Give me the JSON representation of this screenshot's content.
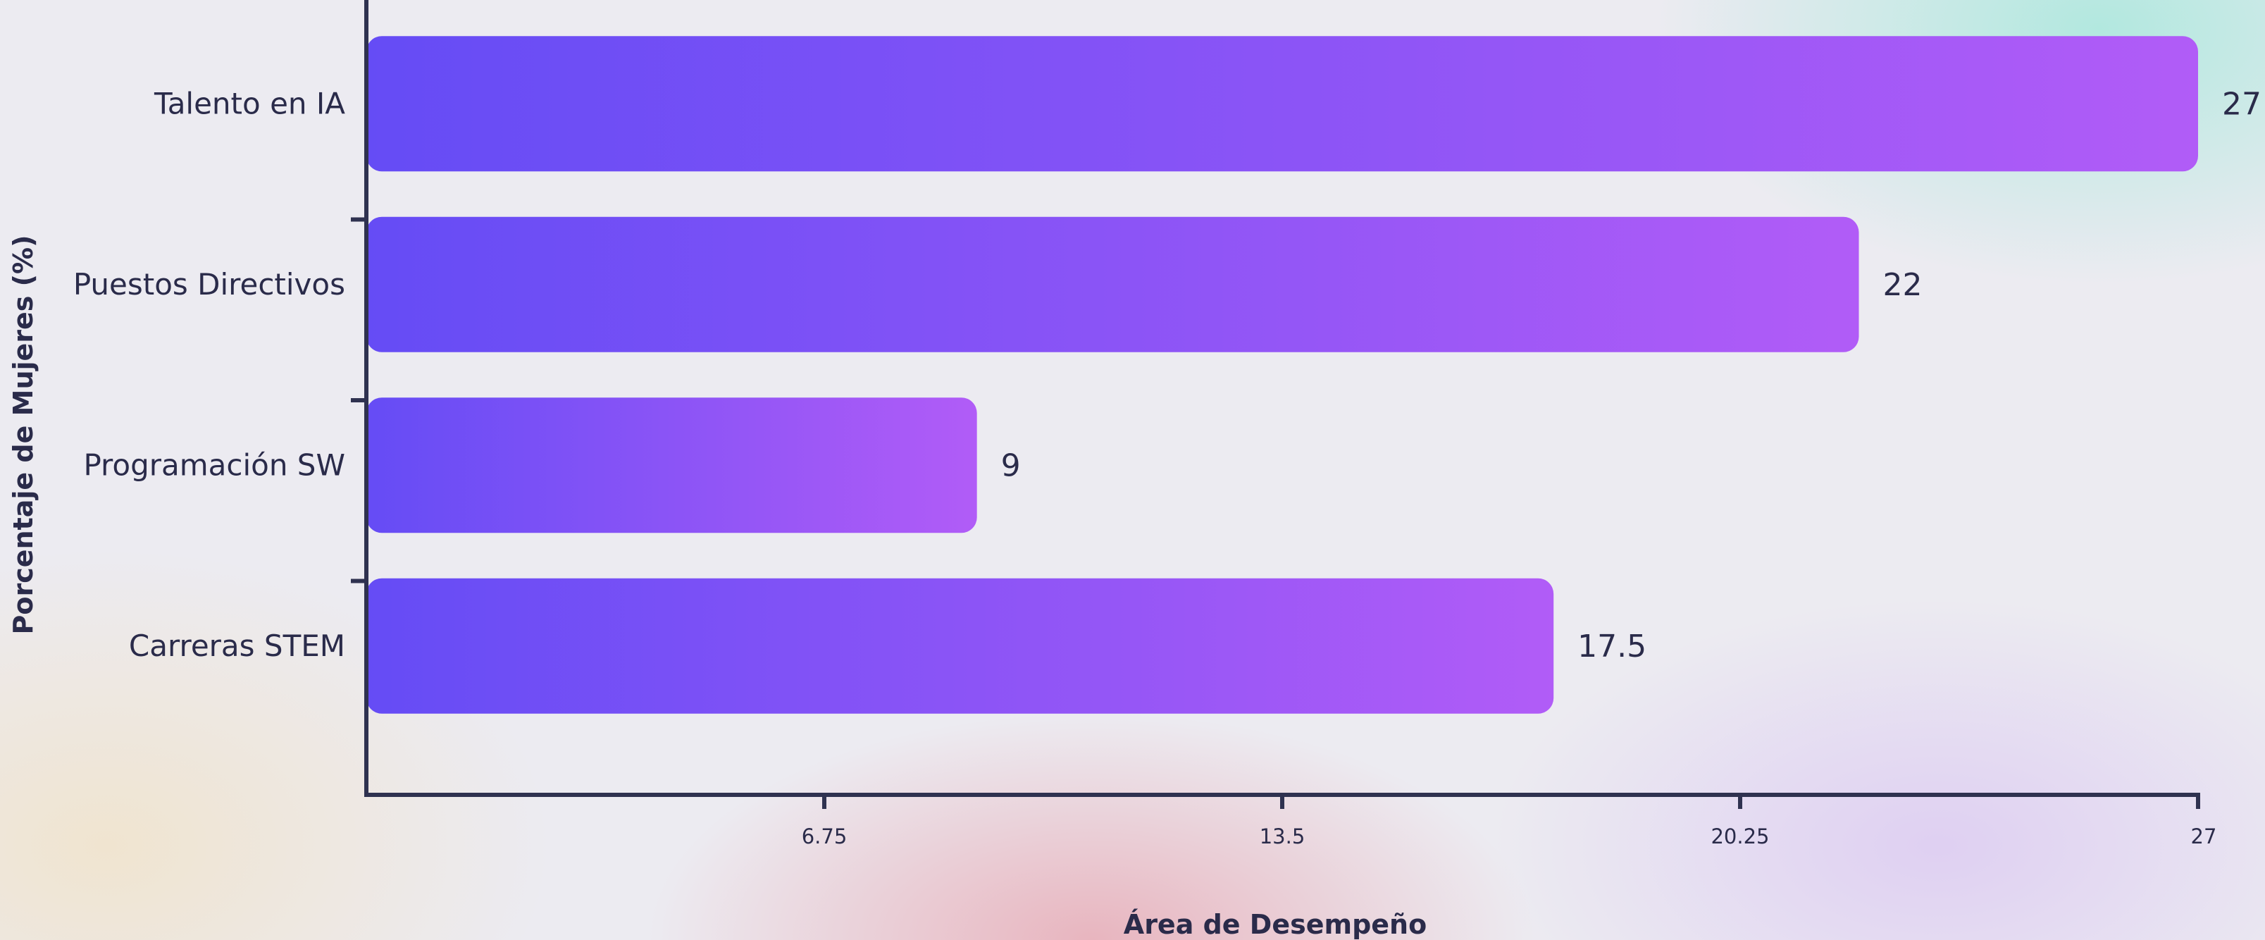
{
  "chart_data": {
    "type": "bar",
    "orientation": "horizontal",
    "categories": [
      "Talento en IA",
      "Puestos Directivos",
      "Programación SW",
      "Carreras STEM"
    ],
    "values": [
      27,
      22,
      9,
      17.5
    ],
    "value_labels": [
      "27",
      "22",
      "9",
      "17.5"
    ],
    "xlabel": "Área de Desempeño",
    "ylabel": "Porcentaje de Mujeres (%)",
    "xlim": [
      0,
      27
    ],
    "xticks": [
      6.75,
      13.5,
      20.25,
      27
    ],
    "xtick_labels": [
      "6.75",
      "13.5",
      "20.25",
      "27"
    ],
    "grid": false,
    "legend": "none",
    "colors": {
      "bar_start": "#654cf5",
      "bar_end": "#b15cf7",
      "axis": "#2f3250",
      "text": "#2a2b4a"
    }
  }
}
